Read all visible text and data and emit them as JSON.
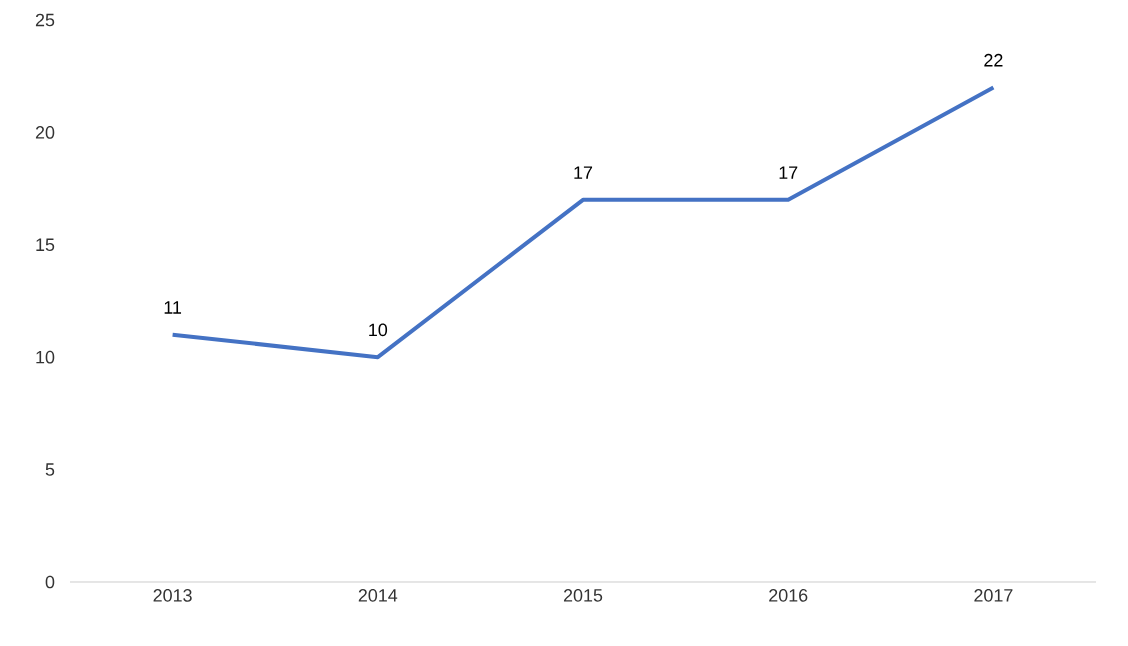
{
  "chart_data": {
    "type": "line",
    "categories": [
      "2013",
      "2014",
      "2015",
      "2016",
      "2017"
    ],
    "values": [
      11,
      10,
      17,
      17,
      22
    ],
    "color": "#4472c4",
    "ylim": [
      0,
      25
    ],
    "yticks": [
      0,
      5,
      10,
      15,
      20,
      25
    ],
    "data_labels": true,
    "grid": false,
    "marker": "none",
    "line_style": "solid"
  }
}
